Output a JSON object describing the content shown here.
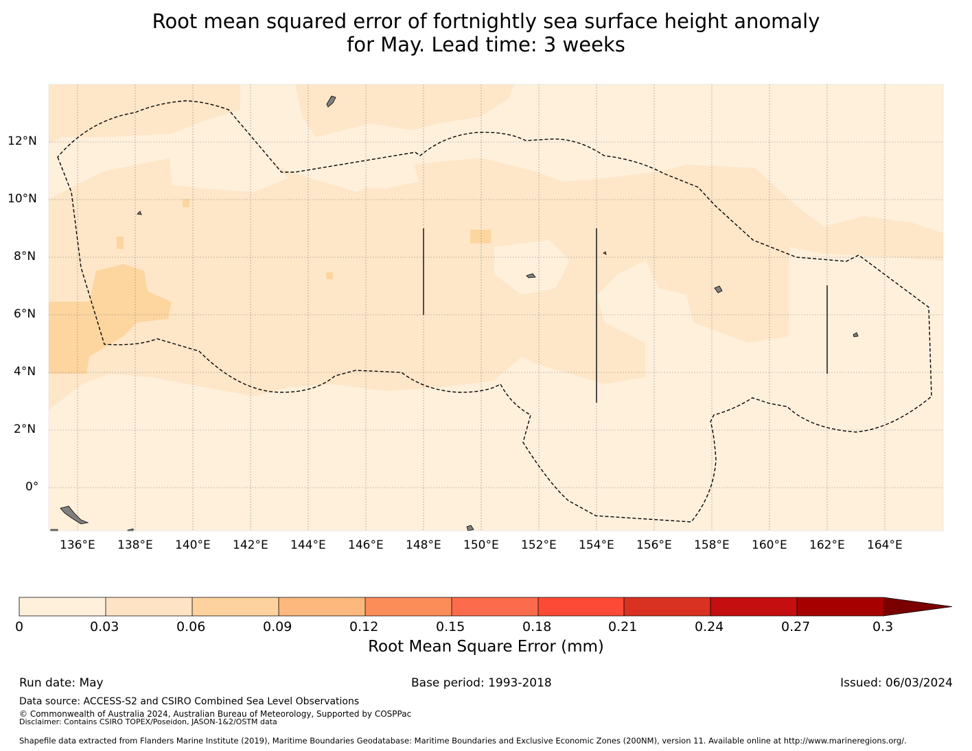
{
  "title": {
    "line1": "Root mean squared error of fortnightly sea surface height anomaly",
    "line2": "for May. Lead time: 3 weeks"
  },
  "map": {
    "lon_labels": [
      "136°E",
      "138°E",
      "140°E",
      "142°E",
      "144°E",
      "146°E",
      "148°E",
      "150°E",
      "152°E",
      "154°E",
      "156°E",
      "158°E",
      "160°E",
      "162°E",
      "164°E"
    ],
    "lat_labels": [
      "12°N",
      "10°N",
      "8°N",
      "6°N",
      "4°N",
      "2°N",
      "0°"
    ],
    "extent": {
      "lon_min": 135,
      "lon_max": 166,
      "lat_min": -1.5,
      "lat_max": 14
    },
    "background_color": "#fff0dc",
    "field_color": "#fee6c8",
    "high_color": "#fdd59f",
    "land_color": "#808080",
    "eez_line": "dashed"
  },
  "colorbar": {
    "tick_labels": [
      "0",
      "0.03",
      "0.06",
      "0.09",
      "0.12",
      "0.15",
      "0.18",
      "0.21",
      "0.24",
      "0.27",
      "0.3"
    ],
    "colors": [
      "#fff0dc",
      "#fee3c4",
      "#fdd29f",
      "#fdb87e",
      "#fc8d59",
      "#fc6c4c",
      "#fc5a46",
      "#fc4a36",
      "#d93222",
      "#c40e10",
      "#a60000"
    ],
    "extend_color": "#7a0000",
    "label": "Root Mean Square Error (mm)"
  },
  "footer": {
    "run_date": "Run date: May",
    "base_period": "Base period: 1993-2018",
    "issued": "Issued: 06/03/2024",
    "data_source": "Data source: ACCESS-S2 and CSIRO Combined Sea Level Observations",
    "copyright": "© Commonwealth of Australia 2024, Australian Bureau of Meteorology, Supported by COSPPac",
    "disclaimer": "Disclaimer: Contains CSIRO TOPEX/Poseidon, JASON-1&2/OSTM data",
    "shapefile": "Shapefile data extracted from Flanders Marine Institute (2019), Maritime Boundaries Geodatabase: Maritime Boundaries and Exclusive Economic Zones (200NM), version 11. Available online at http://www.marineregions.org/."
  }
}
